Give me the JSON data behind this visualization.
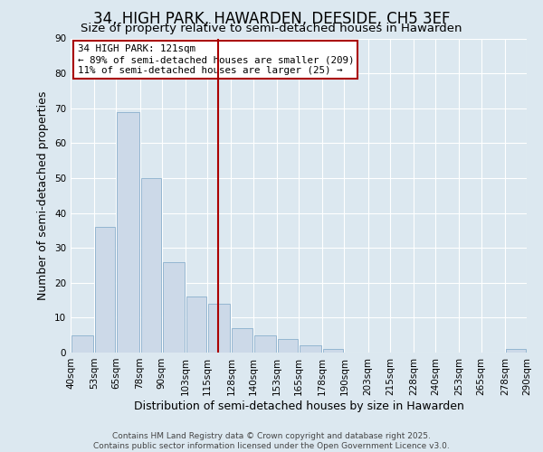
{
  "title": "34, HIGH PARK, HAWARDEN, DEESIDE, CH5 3EF",
  "subtitle": "Size of property relative to semi-detached houses in Hawarden",
  "xlabel": "Distribution of semi-detached houses by size in Hawarden",
  "ylabel": "Number of semi-detached properties",
  "bar_color": "#ccd9e8",
  "bar_edge_color": "#8ab0cc",
  "background_color": "#dce8f0",
  "grid_color": "#ffffff",
  "vline_x": 121,
  "vline_color": "#aa0000",
  "annotation_title": "34 HIGH PARK: 121sqm",
  "annotation_line1": "← 89% of semi-detached houses are smaller (209)",
  "annotation_line2": "11% of semi-detached houses are larger (25) →",
  "bins": [
    40,
    53,
    65,
    78,
    90,
    103,
    115,
    128,
    140,
    153,
    165,
    178,
    190,
    203,
    215,
    228,
    240,
    253,
    265,
    278,
    290
  ],
  "counts": [
    5,
    36,
    69,
    50,
    26,
    16,
    14,
    7,
    5,
    4,
    2,
    1,
    0,
    0,
    0,
    0,
    0,
    0,
    0,
    1
  ],
  "ylim": [
    0,
    90
  ],
  "yticks": [
    0,
    10,
    20,
    30,
    40,
    50,
    60,
    70,
    80,
    90
  ],
  "footer_line1": "Contains HM Land Registry data © Crown copyright and database right 2025.",
  "footer_line2": "Contains public sector information licensed under the Open Government Licence v3.0.",
  "title_fontsize": 12,
  "subtitle_fontsize": 9.5,
  "axis_label_fontsize": 9,
  "tick_fontsize": 7.5,
  "footer_fontsize": 6.5
}
